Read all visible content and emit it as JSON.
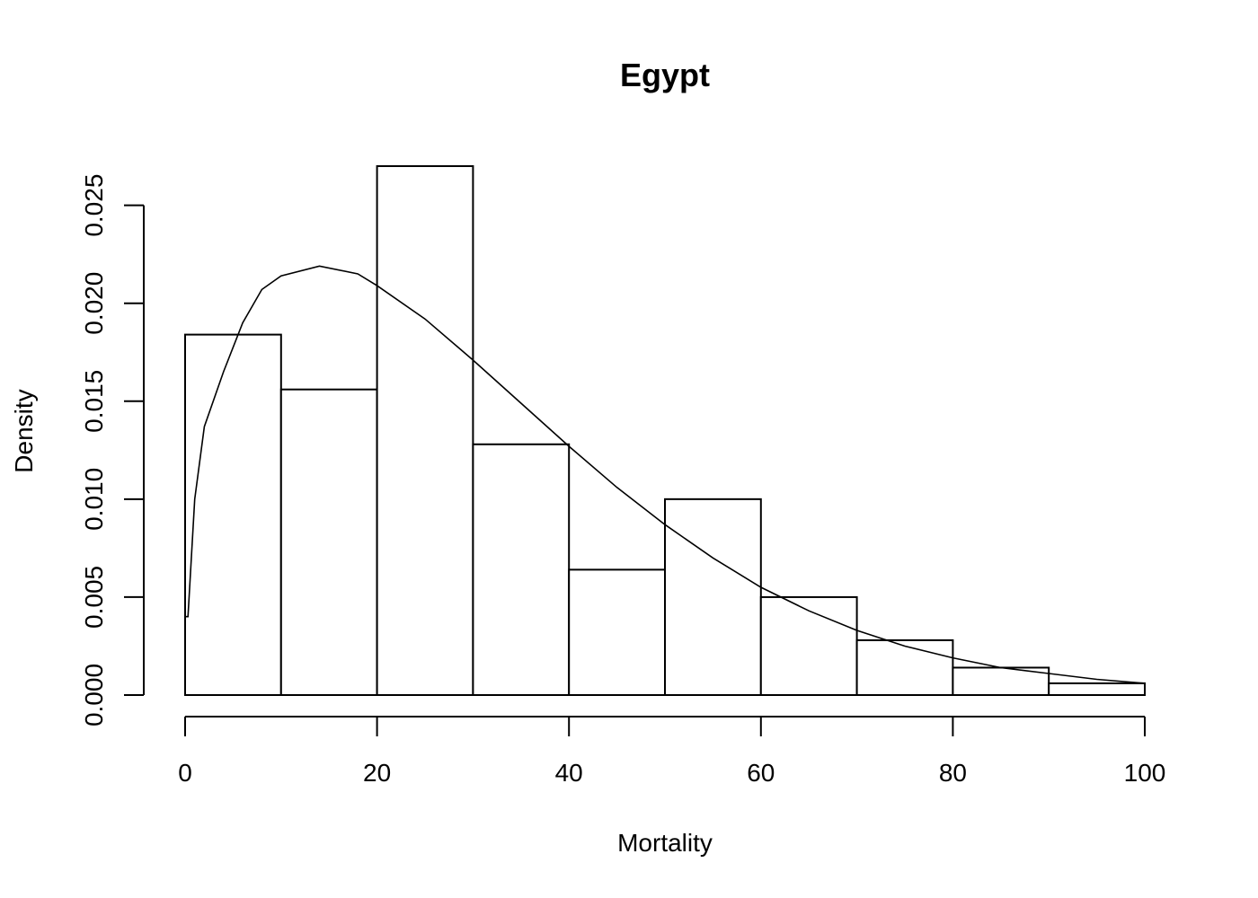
{
  "chart_data": {
    "type": "bar",
    "title": "Egypt",
    "xlabel": "Mortality",
    "ylabel": "Density",
    "xlim": [
      0,
      100
    ],
    "ylim": [
      0,
      0.027
    ],
    "x_ticks": [
      "0",
      "20",
      "40",
      "60",
      "80",
      "100"
    ],
    "y_ticks": [
      "0.000",
      "0.005",
      "0.010",
      "0.015",
      "0.020",
      "0.025"
    ],
    "bins": [
      {
        "from": 0,
        "to": 10,
        "density": 0.0184
      },
      {
        "from": 10,
        "to": 20,
        "density": 0.0156
      },
      {
        "from": 20,
        "to": 30,
        "density": 0.027
      },
      {
        "from": 30,
        "to": 40,
        "density": 0.0128
      },
      {
        "from": 40,
        "to": 50,
        "density": 0.0064
      },
      {
        "from": 50,
        "to": 60,
        "density": 0.01
      },
      {
        "from": 60,
        "to": 70,
        "density": 0.005
      },
      {
        "from": 70,
        "to": 80,
        "density": 0.0028
      },
      {
        "from": 80,
        "to": 90,
        "density": 0.0014
      },
      {
        "from": 90,
        "to": 100,
        "density": 0.0006
      }
    ],
    "fitted_curve": {
      "x": [
        0,
        0.3,
        1,
        2,
        4,
        6,
        8,
        10,
        14,
        18,
        20,
        25,
        30,
        35,
        40,
        45,
        50,
        55,
        60,
        65,
        70,
        75,
        80,
        85,
        90,
        95,
        100
      ],
      "y": [
        0.004,
        0.004,
        0.01,
        0.0137,
        0.0165,
        0.019,
        0.0207,
        0.0214,
        0.0219,
        0.0215,
        0.0209,
        0.0192,
        0.0171,
        0.0149,
        0.0127,
        0.0106,
        0.0087,
        0.007,
        0.0055,
        0.0043,
        0.0033,
        0.0025,
        0.0019,
        0.0014,
        0.0011,
        0.0008,
        0.0006
      ]
    },
    "grid": false
  }
}
